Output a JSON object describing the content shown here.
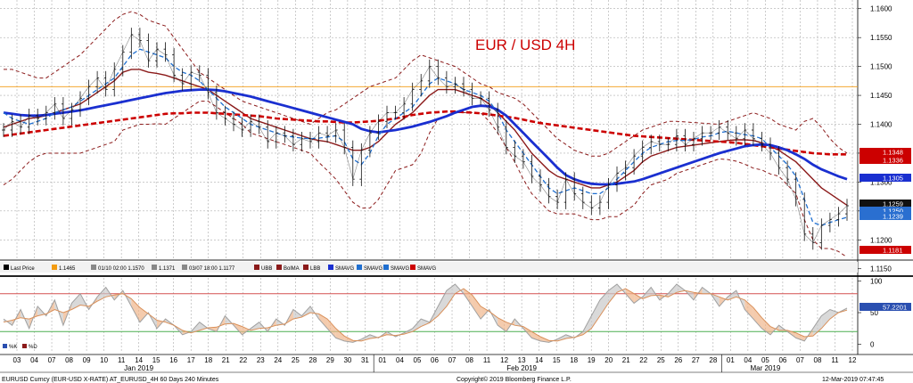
{
  "chart_data": {
    "type": "line",
    "title": "EUR / USD 4H",
    "ylim": [
      1.1165,
      1.1615
    ],
    "oscillator_ylim": [
      -12,
      105
    ],
    "y_ticks": [
      "1.1600",
      "1.1550",
      "1.1500",
      "1.1450",
      "1.1400",
      "1.1350",
      "1.1300",
      "1.1250",
      "1.1200",
      "1.1150"
    ],
    "oscillator_ticks": [
      "100",
      "50",
      "0"
    ],
    "oscillator_levels": [
      80,
      20
    ],
    "x_ticks": [
      "03",
      "04",
      "07",
      "08",
      "09",
      "10",
      "11",
      "14",
      "15",
      "16",
      "17",
      "18",
      "21",
      "22",
      "23",
      "24",
      "25",
      "28",
      "29",
      "30",
      "31",
      "01",
      "04",
      "05",
      "06",
      "07",
      "08",
      "11",
      "12",
      "13",
      "14",
      "15",
      "18",
      "19",
      "20",
      "21",
      "22",
      "25",
      "26",
      "27",
      "28",
      "01",
      "04",
      "05",
      "06",
      "07",
      "08",
      "11",
      "12"
    ],
    "month_labels": [
      {
        "text": "Jan 2019",
        "at": "14"
      },
      {
        "text": "Feb 2019",
        "at": "13"
      },
      {
        "text": "Mar 2019",
        "at": "05"
      }
    ],
    "horizontal_level": 1.1465,
    "legend": [
      {
        "text": "Last Price",
        "color": "#000000"
      },
      {
        "text": "1.1465",
        "color": "#f39c12"
      },
      {
        "text": "01/10 02:00 1.1570",
        "color": "#888888"
      },
      {
        "text": "1.1371",
        "color": "#888888"
      },
      {
        "text": "03/07 18:00 1.1177",
        "color": "#888888"
      },
      {
        "text": "UBB",
        "color": "#8b1a1a"
      },
      {
        "text": "BolMA",
        "color": "#8b1a1a"
      },
      {
        "text": "LBB",
        "color": "#8b1a1a"
      },
      {
        "text": "SMAVG",
        "color": "#1a2fd0"
      },
      {
        "text": "SMAVG",
        "color": "#1f6fd0"
      },
      {
        "text": "SMAVG",
        "color": "#1f6fd0"
      },
      {
        "text": "SMAVG",
        "color": "#cc0000"
      }
    ],
    "oscillator_legend": [
      "%K",
      "%D"
    ],
    "price_labels": [
      {
        "text": "1.1348",
        "color": "#cc0000"
      },
      {
        "text": "1.1336",
        "color": "#cc0000"
      },
      {
        "text": "1.1305",
        "color": "#1a2fd0"
      },
      {
        "text": "1.1259",
        "color": "#111111"
      },
      {
        "text": "1.1250",
        "color": "#2a6fd0"
      },
      {
        "text": "1.1239",
        "color": "#2a6fd0"
      },
      {
        "text": "1.1181",
        "color": "#cc0000"
      }
    ],
    "oscillator_value_label": {
      "text": "57.2201",
      "color": "#2a4fb0"
    },
    "colors": {
      "price": "#111111",
      "sma_slow": "#cc0000",
      "sma_mid": "#1a2fd0",
      "sma_fast": "#1f6fd0",
      "bollinger": "#8b1a1a",
      "level": "#f39c12",
      "osc_k": "#a0a0a0",
      "osc_d": "#d9905a",
      "osc_upper": "#d35050",
      "osc_lower": "#4caf50",
      "grid": "#9a9a9a",
      "panel_divider": "#222222"
    },
    "series": [
      {
        "key": "close",
        "values": [
          1.139,
          1.1405,
          1.1395,
          1.1415,
          1.141,
          1.142,
          1.1435,
          1.141,
          1.1425,
          1.1445,
          1.1465,
          1.148,
          1.146,
          1.1495,
          1.1525,
          1.1555,
          1.1545,
          1.151,
          1.153,
          1.152,
          1.1485,
          1.147,
          1.149,
          1.1485,
          1.1455,
          1.142,
          1.141,
          1.14,
          1.139,
          1.1405,
          1.1395,
          1.137,
          1.1385,
          1.138,
          1.1365,
          1.1375,
          1.137,
          1.1385,
          1.138,
          1.139,
          1.136,
          1.1305,
          1.1355,
          1.1385,
          1.1405,
          1.142,
          1.142,
          1.1435,
          1.146,
          1.1475,
          1.15,
          1.148,
          1.1465,
          1.147,
          1.146,
          1.1445,
          1.1445,
          1.1425,
          1.1395,
          1.136,
          1.1345,
          1.1335,
          1.131,
          1.1295,
          1.1275,
          1.1265,
          1.1305,
          1.128,
          1.1265,
          1.1255,
          1.1265,
          1.1295,
          1.1315,
          1.1325,
          1.1345,
          1.136,
          1.137,
          1.1365,
          1.1365,
          1.138,
          1.1365,
          1.1375,
          1.1385,
          1.1385,
          1.1395,
          1.1385,
          1.1375,
          1.139,
          1.1375,
          1.1365,
          1.135,
          1.1325,
          1.1305,
          1.127,
          1.121,
          1.1195,
          1.1225,
          1.1235,
          1.1245,
          1.1259
        ]
      },
      {
        "key": "sma_slow",
        "values": [
          1.138,
          1.1382,
          1.1384,
          1.1386,
          1.1388,
          1.139,
          1.1392,
          1.1394,
          1.1396,
          1.1398,
          1.14,
          1.1402,
          1.1404,
          1.1406,
          1.1408,
          1.141,
          1.1412,
          1.1414,
          1.1416,
          1.1418,
          1.1419,
          1.1419,
          1.142,
          1.142,
          1.142,
          1.1419,
          1.1418,
          1.1417,
          1.1416,
          1.1415,
          1.1414,
          1.1412,
          1.141,
          1.1409,
          1.1408,
          1.1407,
          1.1406,
          1.1405,
          1.1405,
          1.1404,
          1.1403,
          1.1403,
          1.1404,
          1.1405,
          1.1406,
          1.1408,
          1.141,
          1.1413,
          1.1416,
          1.1418,
          1.142,
          1.1421,
          1.1422,
          1.1422,
          1.1421,
          1.142,
          1.1419,
          1.1417,
          1.1415,
          1.1413,
          1.1411,
          1.1408,
          1.1405,
          1.1402,
          1.14,
          1.1398,
          1.1396,
          1.1394,
          1.1392,
          1.139,
          1.1388,
          1.1386,
          1.1384,
          1.1382,
          1.138,
          1.1379,
          1.1378,
          1.1377,
          1.1376,
          1.1375,
          1.1374,
          1.1373,
          1.1372,
          1.1371,
          1.137,
          1.1369,
          1.1368,
          1.1366,
          1.1364,
          1.1362,
          1.136,
          1.1358,
          1.1356,
          1.1354,
          1.1352,
          1.135,
          1.1349,
          1.1348,
          1.1348,
          1.1348
        ]
      },
      {
        "key": "sma_mid",
        "values": [
          1.142,
          1.1418,
          1.1416,
          1.1415,
          1.1415,
          1.1416,
          1.1418,
          1.142,
          1.1422,
          1.1424,
          1.1427,
          1.143,
          1.1433,
          1.1436,
          1.1439,
          1.1442,
          1.1445,
          1.1448,
          1.1451,
          1.1454,
          1.1456,
          1.1458,
          1.1459,
          1.146,
          1.146,
          1.1459,
          1.1457,
          1.1454,
          1.1451,
          1.1448,
          1.1444,
          1.144,
          1.1436,
          1.1432,
          1.1428,
          1.1424,
          1.142,
          1.1416,
          1.1412,
          1.1408,
          1.1404,
          1.14,
          1.1392,
          1.1388,
          1.1386,
          1.1388,
          1.139,
          1.1393,
          1.1396,
          1.14,
          1.1404,
          1.1409,
          1.1414,
          1.142,
          1.1425,
          1.143,
          1.1432,
          1.1431,
          1.1425,
          1.1415,
          1.14,
          1.1385,
          1.137,
          1.1355,
          1.134,
          1.1325,
          1.1312,
          1.1305,
          1.13,
          1.1297,
          1.1296,
          1.1296,
          1.1297,
          1.1299,
          1.1301,
          1.1305,
          1.131,
          1.1315,
          1.132,
          1.1325,
          1.133,
          1.1335,
          1.134,
          1.1345,
          1.135,
          1.1354,
          1.1358,
          1.1362,
          1.1364,
          1.1365,
          1.1364,
          1.136,
          1.1355,
          1.1348,
          1.134,
          1.133,
          1.1322,
          1.1316,
          1.131,
          1.1305
        ]
      },
      {
        "key": "sma_fast",
        "values": [
          1.142,
          1.141,
          1.1405,
          1.14,
          1.1405,
          1.141,
          1.142,
          1.1425,
          1.143,
          1.144,
          1.145,
          1.146,
          1.147,
          1.148,
          1.15,
          1.152,
          1.153,
          1.1525,
          1.152,
          1.1515,
          1.15,
          1.149,
          1.1485,
          1.1475,
          1.146,
          1.1445,
          1.143,
          1.142,
          1.141,
          1.14,
          1.1395,
          1.139,
          1.1385,
          1.138,
          1.1378,
          1.1376,
          1.1375,
          1.1376,
          1.1378,
          1.138,
          1.137,
          1.134,
          1.133,
          1.135,
          1.138,
          1.14,
          1.141,
          1.142,
          1.143,
          1.145,
          1.147,
          1.148,
          1.1475,
          1.147,
          1.146,
          1.1455,
          1.145,
          1.144,
          1.142,
          1.139,
          1.137,
          1.135,
          1.133,
          1.131,
          1.129,
          1.128,
          1.1285,
          1.129,
          1.1285,
          1.128,
          1.128,
          1.129,
          1.1305,
          1.132,
          1.1335,
          1.135,
          1.136,
          1.1365,
          1.137,
          1.1372,
          1.1372,
          1.1374,
          1.1378,
          1.138,
          1.1385,
          1.1388,
          1.1385,
          1.1382,
          1.138,
          1.1375,
          1.136,
          1.1345,
          1.133,
          1.131,
          1.127,
          1.123,
          1.1225,
          1.123,
          1.1235,
          1.1239
        ]
      },
      {
        "key": "bol_ma",
        "values": [
          1.1395,
          1.14,
          1.1405,
          1.141,
          1.1412,
          1.1415,
          1.142,
          1.1425,
          1.143,
          1.1435,
          1.1445,
          1.1455,
          1.1465,
          1.1475,
          1.149,
          1.1495,
          1.1495,
          1.149,
          1.1488,
          1.1485,
          1.148,
          1.1475,
          1.147,
          1.1465,
          1.146,
          1.145,
          1.144,
          1.143,
          1.142,
          1.141,
          1.1405,
          1.14,
          1.1395,
          1.139,
          1.1385,
          1.138,
          1.1375,
          1.1372,
          1.137,
          1.1365,
          1.136,
          1.1355,
          1.1355,
          1.136,
          1.137,
          1.1385,
          1.14,
          1.141,
          1.142,
          1.1435,
          1.145,
          1.146,
          1.146,
          1.146,
          1.1455,
          1.145,
          1.1445,
          1.1435,
          1.142,
          1.1405,
          1.139,
          1.137,
          1.135,
          1.1335,
          1.132,
          1.131,
          1.1305,
          1.13,
          1.1295,
          1.129,
          1.129,
          1.1295,
          1.13,
          1.131,
          1.132,
          1.1335,
          1.1345,
          1.135,
          1.1355,
          1.136,
          1.1362,
          1.1364,
          1.1366,
          1.1368,
          1.137,
          1.1372,
          1.1373,
          1.1373,
          1.1372,
          1.1368,
          1.1362,
          1.1355,
          1.1345,
          1.1335,
          1.132,
          1.1305,
          1.129,
          1.128,
          1.127,
          1.126
        ]
      },
      {
        "key": "ubb",
        "values": [
          1.1495,
          1.1495,
          1.149,
          1.1485,
          1.148,
          1.148,
          1.149,
          1.15,
          1.151,
          1.152,
          1.1535,
          1.155,
          1.1565,
          1.158,
          1.159,
          1.1595,
          1.159,
          1.158,
          1.1575,
          1.157,
          1.155,
          1.153,
          1.151,
          1.149,
          1.148,
          1.147,
          1.146,
          1.145,
          1.144,
          1.1435,
          1.143,
          1.1425,
          1.142,
          1.1415,
          1.141,
          1.1405,
          1.14,
          1.141,
          1.142,
          1.1425,
          1.1435,
          1.1445,
          1.1455,
          1.1465,
          1.147,
          1.1475,
          1.148,
          1.1495,
          1.151,
          1.152,
          1.1515,
          1.151,
          1.1505,
          1.15,
          1.149,
          1.148,
          1.147,
          1.1465,
          1.1455,
          1.145,
          1.1445,
          1.1435,
          1.142,
          1.1405,
          1.139,
          1.1375,
          1.1365,
          1.1355,
          1.135,
          1.1345,
          1.1345,
          1.135,
          1.136,
          1.137,
          1.138,
          1.139,
          1.1395,
          1.14,
          1.1405,
          1.1405,
          1.1404,
          1.1403,
          1.1402,
          1.1401,
          1.14,
          1.1405,
          1.141,
          1.1415,
          1.142,
          1.1415,
          1.141,
          1.14,
          1.1395,
          1.139,
          1.1405,
          1.141,
          1.1395,
          1.1375,
          1.136,
          1.135
        ]
      },
      {
        "key": "lbb",
        "values": [
          1.1295,
          1.1305,
          1.132,
          1.1335,
          1.1345,
          1.135,
          1.135,
          1.135,
          1.135,
          1.135,
          1.1355,
          1.136,
          1.1365,
          1.137,
          1.139,
          1.1395,
          1.14,
          1.14,
          1.1401,
          1.14,
          1.141,
          1.142,
          1.143,
          1.144,
          1.144,
          1.143,
          1.142,
          1.141,
          1.14,
          1.1385,
          1.138,
          1.1375,
          1.137,
          1.1365,
          1.136,
          1.1355,
          1.135,
          1.1334,
          1.132,
          1.1305,
          1.1285,
          1.1265,
          1.1255,
          1.1255,
          1.127,
          1.1295,
          1.132,
          1.1325,
          1.133,
          1.135,
          1.1385,
          1.141,
          1.1415,
          1.142,
          1.142,
          1.142,
          1.142,
          1.1405,
          1.1385,
          1.136,
          1.1335,
          1.1305,
          1.128,
          1.1265,
          1.125,
          1.1245,
          1.1245,
          1.1245,
          1.124,
          1.1235,
          1.1235,
          1.124,
          1.124,
          1.125,
          1.126,
          1.128,
          1.1295,
          1.13,
          1.1305,
          1.1315,
          1.132,
          1.1325,
          1.133,
          1.1335,
          1.134,
          1.1339,
          1.1336,
          1.1331,
          1.1324,
          1.1321,
          1.1314,
          1.131,
          1.1295,
          1.128,
          1.1235,
          1.12,
          1.1185,
          1.1185,
          1.118,
          1.117
        ]
      },
      {
        "key": "stoch_k",
        "values": [
          40,
          30,
          55,
          25,
          60,
          45,
          70,
          30,
          65,
          80,
          55,
          75,
          90,
          70,
          85,
          60,
          35,
          50,
          25,
          40,
          30,
          15,
          20,
          35,
          25,
          20,
          45,
          30,
          15,
          25,
          35,
          20,
          40,
          30,
          55,
          45,
          60,
          40,
          25,
          10,
          5,
          3,
          8,
          15,
          10,
          20,
          12,
          18,
          25,
          40,
          35,
          60,
          85,
          95,
          80,
          60,
          40,
          55,
          30,
          20,
          40,
          25,
          10,
          5,
          3,
          8,
          15,
          10,
          20,
          45,
          70,
          85,
          95,
          80,
          65,
          75,
          90,
          70,
          80,
          95,
          85,
          70,
          90,
          80,
          60,
          75,
          85,
          55,
          40,
          25,
          15,
          30,
          20,
          10,
          5,
          25,
          45,
          55,
          50,
          57.22
        ]
      },
      {
        "key": "stoch_d",
        "values": [
          35,
          38,
          42,
          40,
          45,
          48,
          55,
          50,
          55,
          62,
          60,
          68,
          75,
          78,
          80,
          72,
          58,
          48,
          38,
          35,
          30,
          22,
          18,
          22,
          26,
          27,
          32,
          33,
          28,
          22,
          25,
          26,
          30,
          32,
          40,
          43,
          50,
          48,
          40,
          25,
          13,
          6,
          5,
          9,
          11,
          15,
          14,
          16,
          20,
          28,
          34,
          45,
          60,
          80,
          88,
          78,
          60,
          52,
          42,
          35,
          30,
          28,
          20,
          12,
          6,
          5,
          9,
          11,
          15,
          25,
          45,
          65,
          82,
          88,
          80,
          72,
          77,
          78,
          75,
          82,
          85,
          82,
          80,
          80,
          75,
          70,
          75,
          70,
          58,
          42,
          28,
          22,
          22,
          18,
          12,
          13,
          25,
          40,
          50,
          54
        ]
      }
    ]
  }
}
